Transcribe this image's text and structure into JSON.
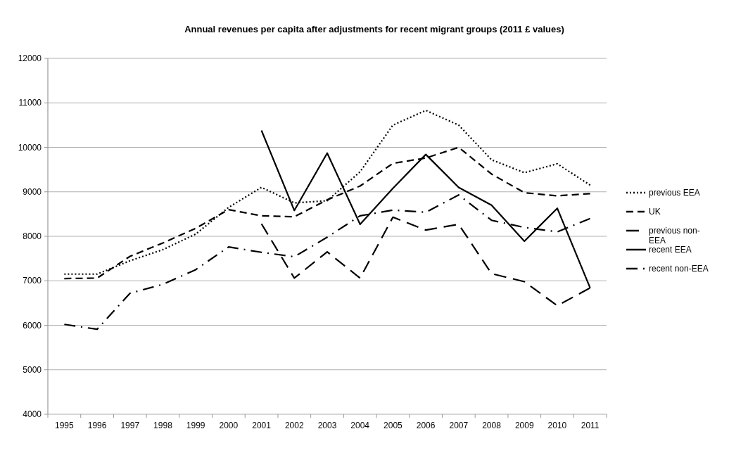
{
  "chart_data": {
    "type": "line",
    "title": "Annual revenues per capita after adjustments for recent migrant groups (2011 £ values)",
    "categories": [
      "1995",
      "1996",
      "1997",
      "1998",
      "1999",
      "2000",
      "2001",
      "2002",
      "2003",
      "2004",
      "2005",
      "2006",
      "2007",
      "2008",
      "2009",
      "2010",
      "2011"
    ],
    "ylim": [
      4000,
      12000
    ],
    "yticks": [
      4000,
      5000,
      6000,
      7000,
      8000,
      9000,
      10000,
      11000,
      12000
    ],
    "grid": "y",
    "legend": "right",
    "marker": "none",
    "series": [
      {
        "name": "previous EEA",
        "color": "#000000",
        "line_style": "dotted",
        "values": [
          7150,
          7150,
          7450,
          7700,
          8050,
          8650,
          9100,
          8750,
          8800,
          9450,
          10500,
          10830,
          10500,
          9720,
          9430,
          9630,
          9150
        ]
      },
      {
        "name": "UK",
        "color": "#000000",
        "line_style": "dashed",
        "values": [
          7050,
          7060,
          7550,
          7850,
          8180,
          8600,
          8460,
          8440,
          8820,
          9130,
          9640,
          9760,
          10000,
          9400,
          8980,
          8910,
          8960
        ]
      },
      {
        "name": "previous non-EEA",
        "color": "#000000",
        "line_style": "longdash",
        "values": [
          null,
          null,
          null,
          null,
          null,
          null,
          8280,
          7060,
          7650,
          7060,
          8430,
          8140,
          8270,
          7160,
          6980,
          6440,
          6840
        ]
      },
      {
        "name": "recent EEA",
        "color": "#000000",
        "line_style": "solid",
        "values": [
          null,
          null,
          null,
          null,
          null,
          null,
          10380,
          8580,
          9870,
          8270,
          9080,
          9840,
          9100,
          8700,
          7890,
          8630,
          6840
        ]
      },
      {
        "name": "recent non-EEA",
        "color": "#000000",
        "line_style": "dashdot",
        "values": [
          6020,
          5910,
          6720,
          6920,
          7250,
          7760,
          7640,
          7540,
          7980,
          8460,
          8590,
          8540,
          8930,
          8360,
          8200,
          8100,
          8400
        ]
      }
    ]
  }
}
